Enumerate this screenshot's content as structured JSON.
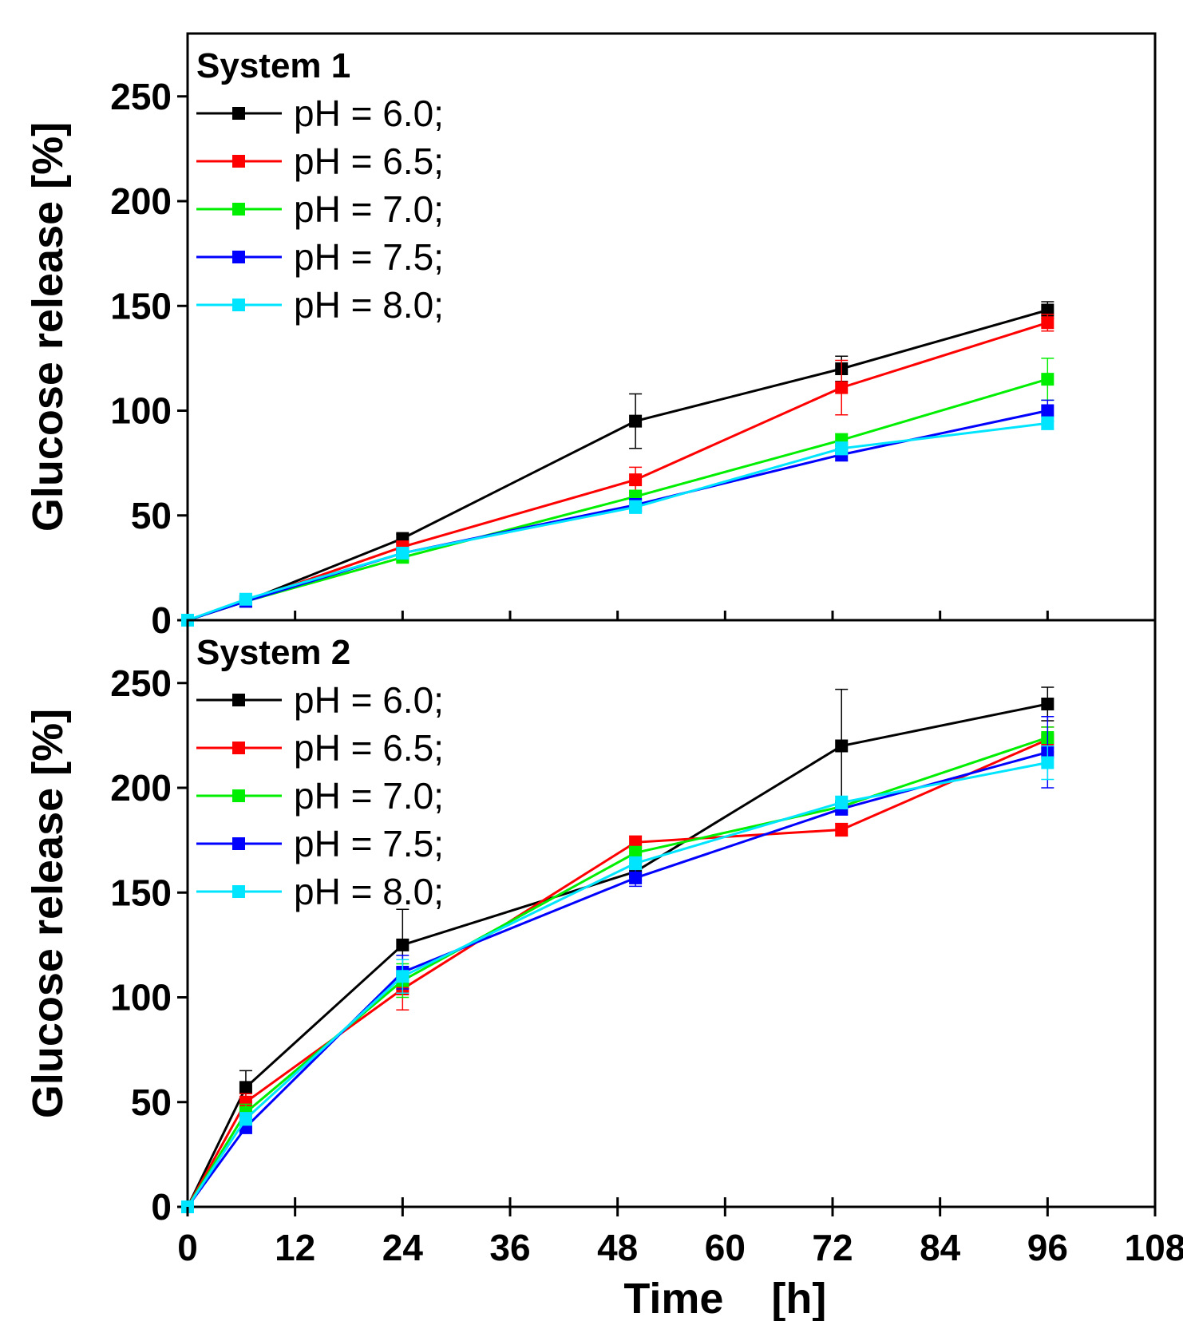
{
  "chart_data": [
    {
      "type": "line",
      "title": "System 1",
      "xlabel": "Time    [h]",
      "ylabel": "Glucose release [%]",
      "xlim": [
        0,
        108
      ],
      "ylim": [
        0,
        280
      ],
      "xticks": [
        0,
        12,
        24,
        36,
        48,
        60,
        72,
        84,
        96,
        108
      ],
      "yticks": [
        0,
        50,
        100,
        150,
        200,
        250
      ],
      "x": [
        0,
        6.5,
        24,
        50,
        73,
        96
      ],
      "grid": false,
      "legend_position": "top-left",
      "series": [
        {
          "name": "pH = 6.0;",
          "color": "#000000",
          "values": [
            0,
            9,
            39,
            95,
            120,
            148
          ],
          "errors": [
            0,
            1,
            2,
            13,
            6,
            4
          ]
        },
        {
          "name": "pH = 6.5;",
          "color": "#ff0000",
          "values": [
            0,
            9,
            35,
            67,
            111,
            142
          ],
          "errors": [
            0,
            1,
            2,
            6,
            13,
            4
          ]
        },
        {
          "name": "pH = 7.0;",
          "color": "#00ee00",
          "values": [
            0,
            9,
            30,
            59,
            86,
            115
          ],
          "errors": [
            0,
            1,
            2,
            3,
            3,
            10
          ]
        },
        {
          "name": "pH = 7.5;",
          "color": "#0000ff",
          "values": [
            0,
            9,
            32,
            55,
            79,
            100
          ],
          "errors": [
            0,
            1,
            2,
            3,
            3,
            5
          ]
        },
        {
          "name": "pH = 8.0;",
          "color": "#00e5ff",
          "values": [
            0,
            10,
            32,
            54,
            82,
            94
          ],
          "errors": [
            0,
            1,
            2,
            3,
            3,
            3
          ]
        }
      ]
    },
    {
      "type": "line",
      "title": "System 2",
      "xlabel": "Time    [h]",
      "ylabel": "Glucose release [%]",
      "xlim": [
        0,
        108
      ],
      "ylim": [
        0,
        280
      ],
      "xticks": [
        0,
        12,
        24,
        36,
        48,
        60,
        72,
        84,
        96,
        108
      ],
      "yticks": [
        0,
        50,
        100,
        150,
        200,
        250
      ],
      "x": [
        0,
        6.5,
        24,
        50,
        73,
        96
      ],
      "grid": false,
      "legend_position": "top-left",
      "series": [
        {
          "name": "pH = 6.0;",
          "color": "#000000",
          "values": [
            0,
            57,
            125,
            160,
            220,
            240
          ],
          "errors": [
            0,
            8,
            17,
            4,
            27,
            8
          ]
        },
        {
          "name": "pH = 6.5;",
          "color": "#ff0000",
          "values": [
            0,
            50,
            104,
            174,
            180,
            223
          ],
          "errors": [
            0,
            4,
            10,
            3,
            3,
            6
          ]
        },
        {
          "name": "pH = 7.0;",
          "color": "#00ee00",
          "values": [
            0,
            45,
            108,
            169,
            191,
            224
          ],
          "errors": [
            0,
            4,
            8,
            3,
            3,
            5
          ]
        },
        {
          "name": "pH = 7.5;",
          "color": "#0000ff",
          "values": [
            0,
            38,
            112,
            157,
            190,
            217
          ],
          "errors": [
            0,
            3,
            8,
            4,
            3,
            17
          ]
        },
        {
          "name": "pH = 8.0;",
          "color": "#00e5ff",
          "values": [
            0,
            42,
            110,
            164,
            193,
            212
          ],
          "errors": [
            0,
            3,
            8,
            3,
            3,
            8
          ]
        }
      ]
    }
  ]
}
